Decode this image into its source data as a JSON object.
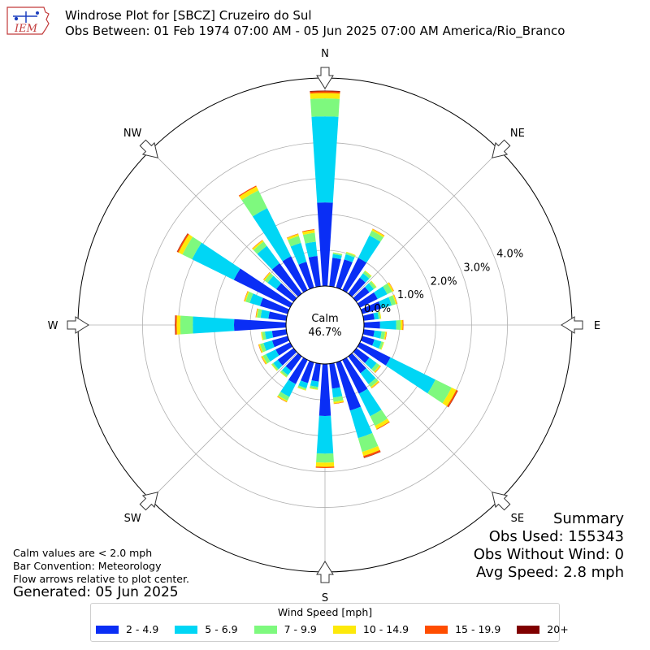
{
  "header": {
    "title_line1": "Windrose Plot for [SBCZ] Cruzeiro do Sul",
    "title_line2": "Obs Between: 01 Feb 1974 07:00 AM - 05 Jun 2025 07:00 AM America/Rio_Branco",
    "logo_text": "IEM"
  },
  "notes": {
    "calm": "Calm values are < 2.0 mph",
    "bar_convention": "Bar Convention: Meteorology",
    "flow_arrows": "Flow arrows relative to plot center.",
    "generated": "Generated: 05 Jun 2025"
  },
  "summary": {
    "title": "Summary",
    "obs_used": "Obs Used: 155343",
    "obs_without_wind": "Obs Without Wind: 0",
    "avg_speed": "Avg Speed: 2.8 mph"
  },
  "colors": {
    "bins": [
      "#0a2ef5",
      "#00d6f5",
      "#7ef97e",
      "#fde90a",
      "#ff4d00",
      "#800000"
    ],
    "grid": "#b0b0b0",
    "outer_circle": "#000000"
  },
  "chart_data": {
    "type": "windrose",
    "calm_label": "Calm",
    "calm_value": "46.7%",
    "legend_title": "Wind Speed [mph]",
    "speed_bins": [
      "2 - 4.9",
      "5 - 6.9",
      "7 - 9.9",
      "10 - 14.9",
      "15 - 19.9",
      "20+"
    ],
    "radial_ticks": [
      {
        "value": 0,
        "label": "0.0%"
      },
      {
        "value": 1,
        "label": "1.0%"
      },
      {
        "value": 2,
        "label": "2.0%"
      },
      {
        "value": 3,
        "label": "3.0%"
      },
      {
        "value": 4,
        "label": "4.0%"
      }
    ],
    "radial_max": 5.8,
    "compass_labels": [
      {
        "label": "N",
        "bearing": 0
      },
      {
        "label": "NE",
        "bearing": 45
      },
      {
        "label": "E",
        "bearing": 90
      },
      {
        "label": "SE",
        "bearing": 135
      },
      {
        "label": "S",
        "bearing": 180
      },
      {
        "label": "SW",
        "bearing": 225
      },
      {
        "label": "W",
        "bearing": 270
      },
      {
        "label": "NW",
        "bearing": 315
      }
    ],
    "directions": [
      {
        "bearing": 0,
        "values": [
          2.33,
          2.4,
          0.5,
          0.15,
          0.05,
          0.02
        ]
      },
      {
        "bearing": 10,
        "values": [
          0.8,
          0.1,
          0.04,
          0.01,
          0.0,
          0.0
        ]
      },
      {
        "bearing": 20,
        "values": [
          0.82,
          0.15,
          0.05,
          0.02,
          0.0,
          0.0
        ]
      },
      {
        "bearing": 30,
        "values": [
          1.0,
          0.7,
          0.15,
          0.05,
          0.01,
          0.0
        ]
      },
      {
        "bearing": 40,
        "values": [
          0.55,
          0.15,
          0.08,
          0.02,
          0.0,
          0.0
        ]
      },
      {
        "bearing": 50,
        "values": [
          0.45,
          0.15,
          0.08,
          0.02,
          0.0,
          0.0
        ]
      },
      {
        "bearing": 60,
        "values": [
          0.55,
          0.3,
          0.15,
          0.05,
          0.01,
          0.0
        ]
      },
      {
        "bearing": 70,
        "values": [
          0.55,
          0.3,
          0.12,
          0.04,
          0.01,
          0.0
        ]
      },
      {
        "bearing": 80,
        "values": [
          0.3,
          0.12,
          0.05,
          0.02,
          0.0,
          0.0
        ]
      },
      {
        "bearing": 90,
        "values": [
          0.45,
          0.45,
          0.12,
          0.06,
          0.02,
          0.0
        ]
      },
      {
        "bearing": 100,
        "values": [
          0.3,
          0.2,
          0.1,
          0.04,
          0.01,
          0.0
        ]
      },
      {
        "bearing": 110,
        "values": [
          0.35,
          0.2,
          0.06,
          0.02,
          0.0,
          0.0
        ]
      },
      {
        "bearing": 120,
        "values": [
          0.95,
          1.4,
          0.5,
          0.15,
          0.04,
          0.01
        ]
      },
      {
        "bearing": 130,
        "values": [
          0.45,
          0.25,
          0.1,
          0.04,
          0.01,
          0.0
        ]
      },
      {
        "bearing": 140,
        "values": [
          0.58,
          0.38,
          0.1,
          0.04,
          0.01,
          0.0
        ]
      },
      {
        "bearing": 150,
        "values": [
          1.05,
          0.7,
          0.3,
          0.1,
          0.02,
          0.0
        ]
      },
      {
        "bearing": 160,
        "values": [
          1.4,
          0.8,
          0.4,
          0.12,
          0.05,
          0.01
        ]
      },
      {
        "bearing": 170,
        "values": [
          0.7,
          0.25,
          0.12,
          0.05,
          0.01,
          0.0
        ]
      },
      {
        "bearing": 180,
        "values": [
          1.45,
          1.05,
          0.25,
          0.12,
          0.03,
          0.0
        ]
      },
      {
        "bearing": 190,
        "values": [
          0.5,
          0.15,
          0.06,
          0.02,
          0.0,
          0.0
        ]
      },
      {
        "bearing": 200,
        "values": [
          0.6,
          0.15,
          0.05,
          0.02,
          0.0,
          0.0
        ]
      },
      {
        "bearing": 210,
        "values": [
          0.75,
          0.4,
          0.12,
          0.04,
          0.01,
          0.0
        ]
      },
      {
        "bearing": 220,
        "values": [
          0.5,
          0.15,
          0.06,
          0.02,
          0.0,
          0.0
        ]
      },
      {
        "bearing": 230,
        "values": [
          0.55,
          0.15,
          0.05,
          0.02,
          0.0,
          0.0
        ]
      },
      {
        "bearing": 240,
        "values": [
          0.45,
          0.3,
          0.1,
          0.04,
          0.01,
          0.0
        ]
      },
      {
        "bearing": 250,
        "values": [
          0.45,
          0.25,
          0.1,
          0.04,
          0.01,
          0.0
        ]
      },
      {
        "bearing": 260,
        "values": [
          0.4,
          0.2,
          0.08,
          0.03,
          0.0,
          0.0
        ]
      },
      {
        "bearing": 270,
        "values": [
          1.45,
          1.15,
          0.35,
          0.1,
          0.04,
          0.01
        ]
      },
      {
        "bearing": 280,
        "values": [
          0.5,
          0.22,
          0.1,
          0.03,
          0.01,
          0.0
        ]
      },
      {
        "bearing": 290,
        "values": [
          0.8,
          0.3,
          0.12,
          0.04,
          0.01,
          0.0
        ]
      },
      {
        "bearing": 300,
        "values": [
          1.75,
          1.3,
          0.3,
          0.12,
          0.04,
          0.01
        ]
      },
      {
        "bearing": 310,
        "values": [
          0.6,
          0.3,
          0.1,
          0.04,
          0.01,
          0.0
        ]
      },
      {
        "bearing": 320,
        "values": [
          1.05,
          0.6,
          0.15,
          0.05,
          0.01,
          0.0
        ]
      },
      {
        "bearing": 330,
        "values": [
          1.05,
          1.5,
          0.55,
          0.12,
          0.03,
          0.0
        ]
      },
      {
        "bearing": 340,
        "values": [
          0.75,
          0.55,
          0.2,
          0.06,
          0.01,
          0.0
        ]
      },
      {
        "bearing": 350,
        "values": [
          0.85,
          0.4,
          0.25,
          0.08,
          0.02,
          0.0
        ]
      }
    ]
  }
}
